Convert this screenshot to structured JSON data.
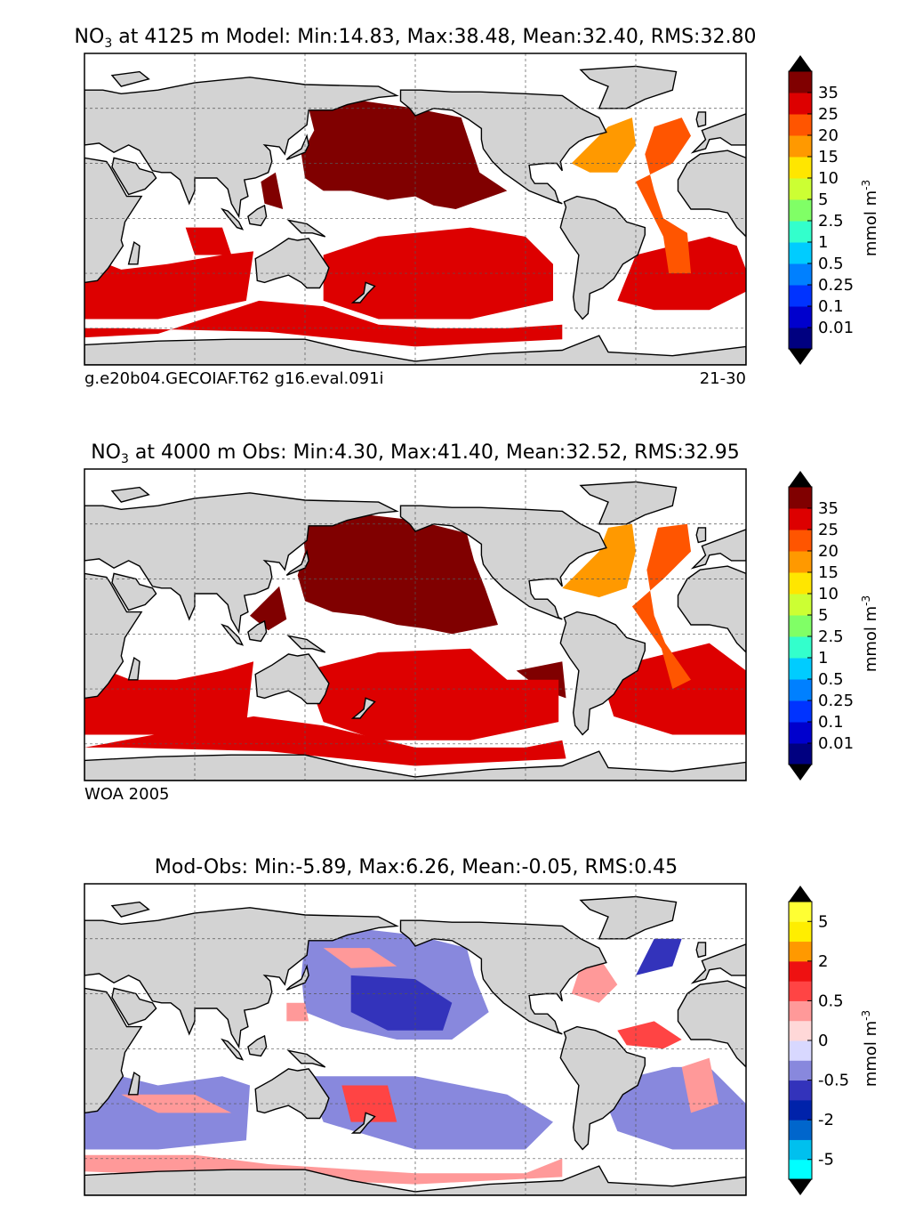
{
  "panels": [
    {
      "id": "model",
      "title_var": "NO",
      "title_sub": "3",
      "title_rest": " at 4125 m Model: Min:14.83, Max:38.48, Mean:32.40, RMS:32.80",
      "label_left": "g.e20b04.GECOIAF.T62 g16.eval.091i",
      "label_right": "21-30",
      "colorbar": {
        "colors": [
          "#000080",
          "#0000cd",
          "#0033ff",
          "#0080ff",
          "#00ccff",
          "#33ffcc",
          "#80ff66",
          "#ccff33",
          "#ffe600",
          "#ff9900",
          "#ff5500",
          "#dd0000",
          "#800000"
        ],
        "ticks": [
          "0.01",
          "0.1",
          "0.25",
          "0.5",
          "1",
          "2.5",
          "5",
          "10",
          "15",
          "20",
          "25",
          "35"
        ],
        "unit": "mmol m",
        "unit_sup": "-3",
        "extend_low": "#000080",
        "extend_high": "#800000"
      }
    },
    {
      "id": "obs",
      "title_var": "NO",
      "title_sub": "3",
      "title_rest": " at 4000 m Obs: Min:4.30, Max:41.40, Mean:32.52, RMS:32.95",
      "label_left": "WOA 2005",
      "label_right": "",
      "colorbar": {
        "colors": [
          "#000080",
          "#0000cd",
          "#0033ff",
          "#0080ff",
          "#00ccff",
          "#33ffcc",
          "#80ff66",
          "#ccff33",
          "#ffe600",
          "#ff9900",
          "#ff5500",
          "#dd0000",
          "#800000"
        ],
        "ticks": [
          "0.01",
          "0.1",
          "0.25",
          "0.5",
          "1",
          "2.5",
          "5",
          "10",
          "15",
          "20",
          "25",
          "35"
        ],
        "unit": "mmol m",
        "unit_sup": "-3",
        "extend_low": "#000080",
        "extend_high": "#800000"
      }
    },
    {
      "id": "diff",
      "title_var": "",
      "title_sub": "",
      "title_rest": "Mod-Obs: Min:-5.89, Max:6.26, Mean:-0.05, RMS:0.45",
      "label_left": "",
      "label_right": "",
      "colorbar": {
        "colors": [
          "#00ffff",
          "#00c0ee",
          "#0066cc",
          "#0022aa",
          "#3333bb",
          "#8888dd",
          "#d8d8ff",
          "#ffd8d8",
          "#ff9999",
          "#ff4444",
          "#ee1111",
          "#ff9900",
          "#ffee00",
          "#ffff33"
        ],
        "ticks": [
          "-5",
          "-2",
          "-0.5",
          "0",
          "0.5",
          "2",
          "5"
        ],
        "tick_positions": [
          1,
          3,
          5,
          7,
          9,
          11,
          13
        ],
        "unit": "mmol m",
        "unit_sup": "-3",
        "extend_low": "#00ffff",
        "extend_high": "#ffff33"
      }
    }
  ],
  "map_style": {
    "land": "#d3d3d3",
    "coast": "#000000",
    "grid": "#555555",
    "ocean_nodata": "#ffffff",
    "model_fill": {
      "north_pacific": "#800000",
      "south": "#dd0000",
      "atlantic_n": "#ff9900",
      "atlantic_mid": "#ff5500"
    },
    "obs_fill": {
      "north_pacific": "#800000",
      "south": "#dd0000",
      "atlantic_n": "#ff9900",
      "atlantic_mid": "#ff5500"
    },
    "diff_fill": {
      "neg": "#8888dd",
      "neg_strong": "#3333bb",
      "pos": "#ff9999",
      "pos_strong": "#ff4444"
    }
  }
}
